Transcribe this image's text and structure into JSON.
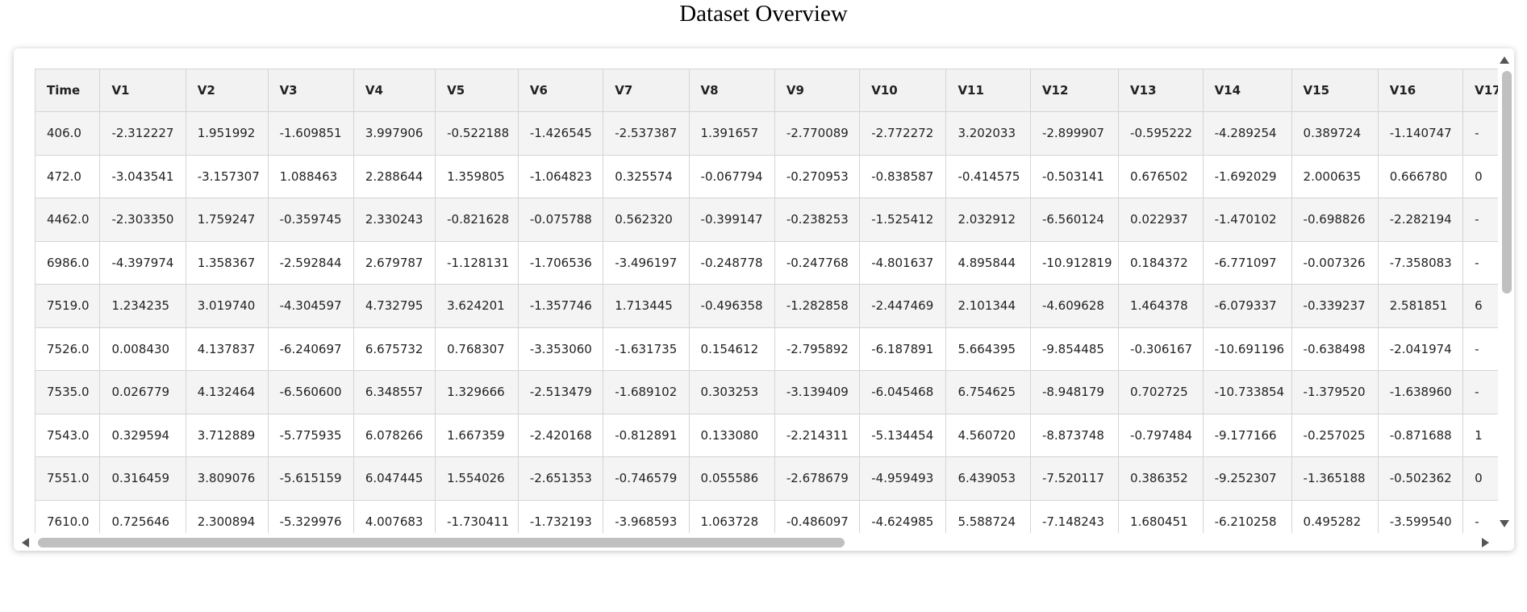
{
  "title": "Dataset Overview",
  "table": {
    "columns": [
      "Time",
      "V1",
      "V2",
      "V3",
      "V4",
      "V5",
      "V6",
      "V7",
      "V8",
      "V9",
      "V10",
      "V11",
      "V12",
      "V13",
      "V14",
      "V15",
      "V16",
      "V17"
    ],
    "rows": [
      [
        "406.0",
        "-2.312227",
        "1.951992",
        "-1.609851",
        "3.997906",
        "-0.522188",
        "-1.426545",
        "-2.537387",
        "1.391657",
        "-2.770089",
        "-2.772272",
        "3.202033",
        "-2.899907",
        "-0.595222",
        "-4.289254",
        "0.389724",
        "-1.140747",
        "-"
      ],
      [
        "472.0",
        "-3.043541",
        "-3.157307",
        "1.088463",
        "2.288644",
        "1.359805",
        "-1.064823",
        "0.325574",
        "-0.067794",
        "-0.270953",
        "-0.838587",
        "-0.414575",
        "-0.503141",
        "0.676502",
        "-1.692029",
        "2.000635",
        "0.666780",
        "0"
      ],
      [
        "4462.0",
        "-2.303350",
        "1.759247",
        "-0.359745",
        "2.330243",
        "-0.821628",
        "-0.075788",
        "0.562320",
        "-0.399147",
        "-0.238253",
        "-1.525412",
        "2.032912",
        "-6.560124",
        "0.022937",
        "-1.470102",
        "-0.698826",
        "-2.282194",
        "-"
      ],
      [
        "6986.0",
        "-4.397974",
        "1.358367",
        "-2.592844",
        "2.679787",
        "-1.128131",
        "-1.706536",
        "-3.496197",
        "-0.248778",
        "-0.247768",
        "-4.801637",
        "4.895844",
        "-10.912819",
        "0.184372",
        "-6.771097",
        "-0.007326",
        "-7.358083",
        "-"
      ],
      [
        "7519.0",
        "1.234235",
        "3.019740",
        "-4.304597",
        "4.732795",
        "3.624201",
        "-1.357746",
        "1.713445",
        "-0.496358",
        "-1.282858",
        "-2.447469",
        "2.101344",
        "-4.609628",
        "1.464378",
        "-6.079337",
        "-0.339237",
        "2.581851",
        "6"
      ],
      [
        "7526.0",
        "0.008430",
        "4.137837",
        "-6.240697",
        "6.675732",
        "0.768307",
        "-3.353060",
        "-1.631735",
        "0.154612",
        "-2.795892",
        "-6.187891",
        "5.664395",
        "-9.854485",
        "-0.306167",
        "-10.691196",
        "-0.638498",
        "-2.041974",
        "-"
      ],
      [
        "7535.0",
        "0.026779",
        "4.132464",
        "-6.560600",
        "6.348557",
        "1.329666",
        "-2.513479",
        "-1.689102",
        "0.303253",
        "-3.139409",
        "-6.045468",
        "6.754625",
        "-8.948179",
        "0.702725",
        "-10.733854",
        "-1.379520",
        "-1.638960",
        "-"
      ],
      [
        "7543.0",
        "0.329594",
        "3.712889",
        "-5.775935",
        "6.078266",
        "1.667359",
        "-2.420168",
        "-0.812891",
        "0.133080",
        "-2.214311",
        "-5.134454",
        "4.560720",
        "-8.873748",
        "-0.797484",
        "-9.177166",
        "-0.257025",
        "-0.871688",
        "1"
      ],
      [
        "7551.0",
        "0.316459",
        "3.809076",
        "-5.615159",
        "6.047445",
        "1.554026",
        "-2.651353",
        "-0.746579",
        "0.055586",
        "-2.678679",
        "-4.959493",
        "6.439053",
        "-7.520117",
        "0.386352",
        "-9.252307",
        "-1.365188",
        "-0.502362",
        "0"
      ],
      [
        "7610.0",
        "0.725646",
        "2.300894",
        "-5.329976",
        "4.007683",
        "-1.730411",
        "-1.732193",
        "-3.968593",
        "1.063728",
        "-0.486097",
        "-4.624985",
        "5.588724",
        "-7.148243",
        "1.680451",
        "-6.210258",
        "0.495282",
        "-3.599540",
        "-"
      ]
    ]
  }
}
